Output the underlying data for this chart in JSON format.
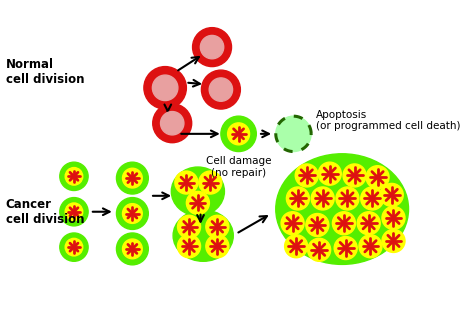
{
  "bg_color": "#ffffff",
  "normal_label": "Normal\ncell division",
  "cancer_label": "Cancer\ncell division",
  "apoptosis_label": "Apoptosis\n(or programmed cell death)",
  "cell_damage_label": "Cell damage\n(no repair)",
  "normal_cell_outer": "#dd1111",
  "normal_cell_inner": "#e8a0a0",
  "green_outer": "#55ee00",
  "yellow_inner": "#ffff00",
  "red_star": "#dd1111",
  "dashed_color": "#226600",
  "apoptosis_fill": "#aaffaa",
  "arrow_color": "#111111",
  "text_color": "#000000"
}
